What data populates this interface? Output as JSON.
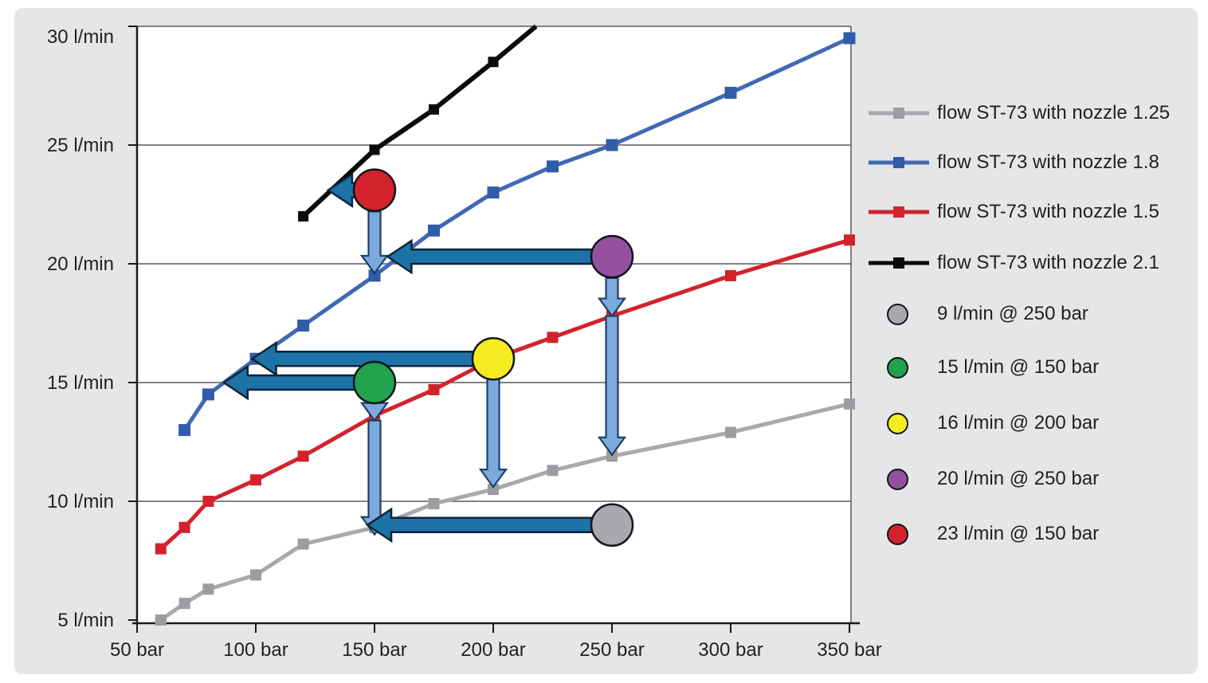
{
  "colors": {
    "page_bg": "#ffffff",
    "panel_bg": "#e5e6e7",
    "plot_bg": "#ffffff",
    "grid": "#58595b",
    "axis": "#1a1a1a",
    "text": "#231f20",
    "h_arrow_fill": "#1d72a8",
    "h_arrow_stroke": "#0f2438",
    "v_arrow_fill": "#7ea9dd",
    "v_arrow_stroke": "#1e3f66",
    "point_stroke": "#14141e"
  },
  "chart_data": {
    "type": "line",
    "title": "",
    "x_unit": "bar",
    "y_unit": "l/min",
    "xlim": [
      50,
      350
    ],
    "ylim": [
      5,
      30
    ],
    "grid": "horizontal",
    "legend_position": "right",
    "x_ticks": [
      50,
      100,
      150,
      200,
      250,
      300,
      350
    ],
    "x_tick_labels": [
      "50 bar",
      "100 bar",
      "150 bar",
      "200 bar",
      "250 bar",
      "300 bar",
      "350 bar"
    ],
    "y_ticks": [
      5,
      10,
      15,
      20,
      25,
      30
    ],
    "y_tick_labels": [
      "5 l/min",
      "10 l/min",
      "15 l/min",
      "20 l/min",
      "25 l/min",
      "30 l/min"
    ],
    "y_gridlines": [
      10,
      15,
      20,
      25
    ],
    "series": [
      {
        "name": "flow ST-73 with nozzle 1.25",
        "color": "#a7a9ac",
        "marker_color": "#9b9da0",
        "line_width": 5,
        "marker_size": 14,
        "points": [
          [
            60,
            5
          ],
          [
            70,
            5.7
          ],
          [
            80,
            6.3
          ],
          [
            100,
            6.9
          ],
          [
            120,
            8.2
          ],
          [
            150,
            8.9
          ],
          [
            175,
            9.9
          ],
          [
            200,
            10.5
          ],
          [
            225,
            11.3
          ],
          [
            250,
            11.9
          ],
          [
            300,
            12.9
          ],
          [
            350,
            14.1
          ]
        ]
      },
      {
        "name": "flow ST-73 with nozzle 1.8",
        "color": "#4169b2",
        "marker_color": "#315ca8",
        "line_width": 5,
        "marker_size": 15,
        "points": [
          [
            70,
            13
          ],
          [
            80,
            14.5
          ],
          [
            100,
            16
          ],
          [
            120,
            17.4
          ],
          [
            150,
            19.5
          ],
          [
            175,
            21.4
          ],
          [
            200,
            23
          ],
          [
            225,
            24.1
          ],
          [
            250,
            25
          ],
          [
            300,
            27.2
          ],
          [
            350,
            29.5
          ]
        ]
      },
      {
        "name": "flow ST-73 with nozzle 1.5",
        "color": "#d2232c",
        "marker_color": "#d2232c",
        "line_width": 5,
        "marker_size": 14,
        "points": [
          [
            60,
            8
          ],
          [
            70,
            8.9
          ],
          [
            80,
            10
          ],
          [
            100,
            10.9
          ],
          [
            120,
            11.9
          ],
          [
            150,
            13.6
          ],
          [
            175,
            14.7
          ],
          [
            200,
            16
          ],
          [
            225,
            16.9
          ],
          [
            250,
            17.8
          ],
          [
            300,
            19.5
          ],
          [
            350,
            21
          ]
        ]
      },
      {
        "name": "flow ST-73 with nozzle 2.1",
        "color": "#0b0b0b",
        "marker_color": "#0b0b0b",
        "line_width": 6,
        "marker_size": 13,
        "points": [
          [
            120,
            22
          ],
          [
            150,
            24.8
          ],
          [
            175,
            26.5
          ],
          [
            200,
            28.5
          ]
        ],
        "line_end": [
          218,
          30
        ]
      }
    ],
    "markers": [
      {
        "label": "9 l/min @ 250 bar",
        "color": "#a7a9ac",
        "x": 250,
        "y": 9
      },
      {
        "label": "15 l/min @ 150 bar",
        "color": "#21a24c",
        "x": 150,
        "y": 15
      },
      {
        "label": "16 l/min @ 200 bar",
        "color": "#f4eb21",
        "x": 200,
        "y": 16
      },
      {
        "label": "20 l/min @ 250 bar",
        "color": "#94509f",
        "x": 250,
        "y": 20,
        "plot_y": 20.3
      },
      {
        "label": "23 l/min @ 150 bar",
        "color": "#d2232c",
        "x": 150,
        "y": 23,
        "plot_y": 23.1
      }
    ],
    "arrows": {
      "horizontal": [
        {
          "name": "red-point-to-nozzle21-curve",
          "y": 23.1,
          "from_x": 142,
          "to_x": 130.5
        },
        {
          "name": "purple-point-to-nozzle18-curve",
          "y": 20.3,
          "from_x": 241.5,
          "to_x": 155.5
        },
        {
          "name": "green-point-to-nozzle18-curve",
          "y": 15,
          "from_x": 142,
          "to_x": 86.5
        },
        {
          "name": "yellow-point-to-nozzle18-curve",
          "y": 16,
          "from_x": 191.5,
          "to_x": 98.5
        },
        {
          "name": "gray-point-to-nozzle125-curve",
          "y": 9,
          "from_x": 241.5,
          "to_x": 147
        }
      ],
      "vertical": [
        {
          "name": "red-point-down-to-nozzle18-curve",
          "x": 150,
          "from_y": 22.2,
          "to_y": 19.6
        },
        {
          "name": "green-point-down-to-nozzle15-curve",
          "x": 150,
          "from_y": 14.2,
          "to_y": 13.4
        },
        {
          "name": "green-point-down-to-nozzle125-curve",
          "x": 150,
          "from_y": 13.4,
          "to_y": 8.6
        },
        {
          "name": "yellow-point-down-to-nozzle125-curve",
          "x": 200,
          "from_y": 15.2,
          "to_y": 10.6
        },
        {
          "name": "purple-point-down-to-nozzle15-curve",
          "x": 250,
          "from_y": 19.4,
          "to_y": 17.8
        },
        {
          "name": "purple-point-down-to-nozzle125-curve",
          "x": 250,
          "from_y": 17.8,
          "to_y": 11.95
        }
      ]
    }
  }
}
